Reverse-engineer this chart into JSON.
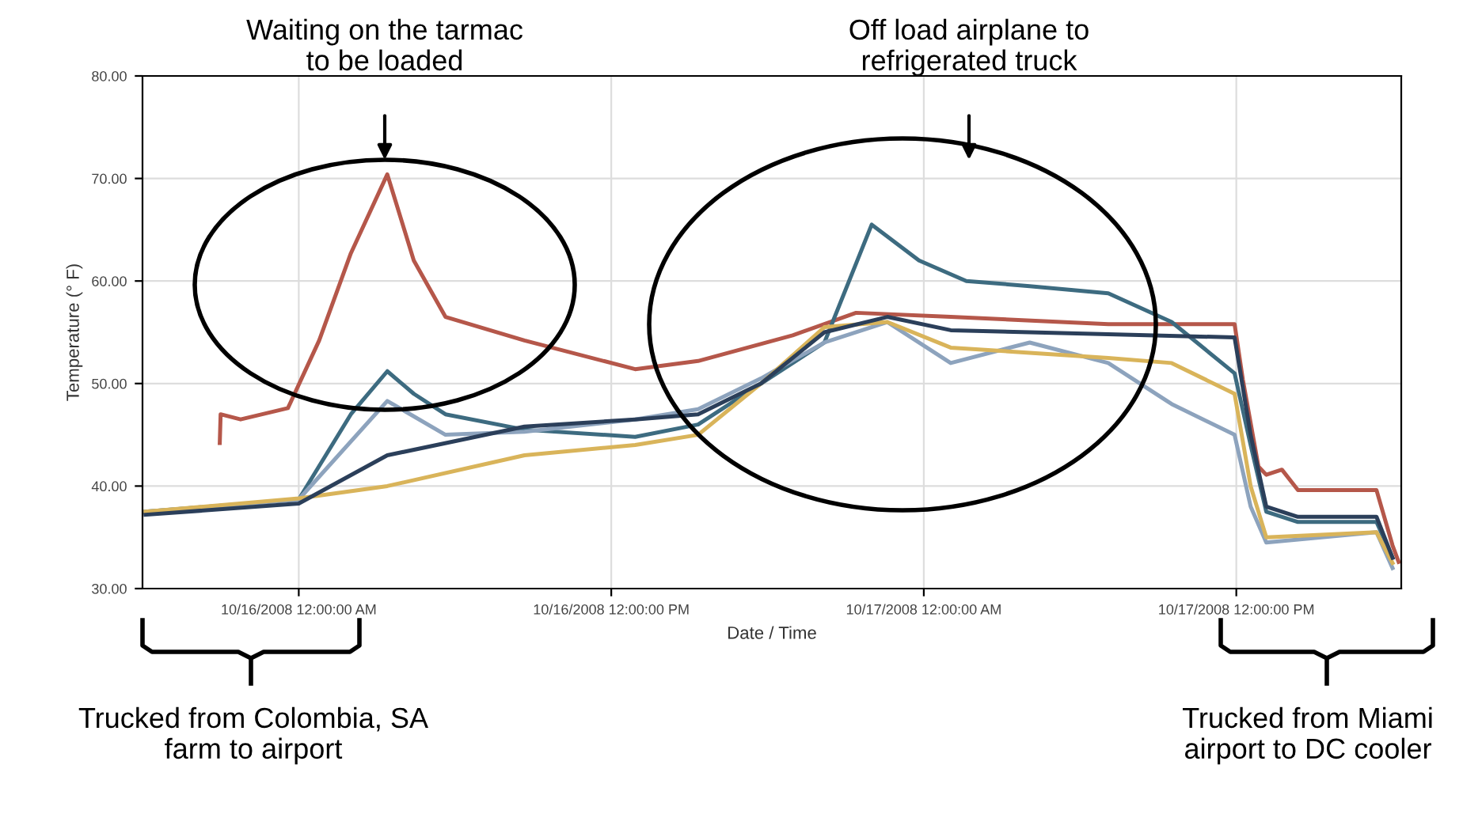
{
  "chart_data": {
    "type": "line",
    "xlabel": "Date / Time",
    "ylabel": "Temperature (° F)",
    "xlim": [
      "2008-10-15T18:00",
      "2008-10-17T18:20"
    ],
    "xticks": [
      {
        "value": "2008-10-16T00:00",
        "label": "10/16/2008 12:00:00 AM"
      },
      {
        "value": "2008-10-16T12:00",
        "label": "10/16/2008 12:00:00 PM"
      },
      {
        "value": "2008-10-17T00:00",
        "label": "10/17/2008 12:00:00 AM"
      },
      {
        "value": "2008-10-17T12:00",
        "label": "10/17/2008 12:00:00 PM"
      }
    ],
    "ylim": [
      30,
      80
    ],
    "yticks": [
      {
        "value": 30,
        "label": "30.00"
      },
      {
        "value": 40,
        "label": "40.00"
      },
      {
        "value": 50,
        "label": "50.00"
      },
      {
        "value": 60,
        "label": "60.00"
      },
      {
        "value": 70,
        "label": "70.00"
      },
      {
        "value": 80,
        "label": "80.00"
      }
    ],
    "grid": true,
    "legend": false,
    "marker": "none",
    "line_style": "solid",
    "series": [
      {
        "color": "#b5574a",
        "x": [
          "2008-10-15T20:58",
          "2008-10-15T21:00",
          "2008-10-15T21:46",
          "2008-10-15T23:35",
          "2008-10-16T00:47",
          "2008-10-16T02:00",
          "2008-10-16T03:24",
          "2008-10-16T04:25",
          "2008-10-16T05:38",
          "2008-10-16T08:40",
          "2008-10-16T12:55",
          "2008-10-16T15:20",
          "2008-10-16T18:58",
          "2008-10-16T21:24",
          "2008-10-17T01:02",
          "2008-10-17T07:05",
          "2008-10-17T11:56",
          "2008-10-17T12:15",
          "2008-10-17T12:51",
          "2008-10-17T13:09",
          "2008-10-17T13:45",
          "2008-10-17T14:22",
          "2008-10-17T17:23",
          "2008-10-17T18:00",
          "2008-10-17T18:14"
        ],
        "values": [
          44.2,
          47,
          46.5,
          47.6,
          54.2,
          62.7,
          70.4,
          62,
          56.5,
          54.2,
          51.4,
          52.2,
          54.7,
          56.9,
          56.5,
          55.8,
          55.8,
          50.4,
          41.9,
          41.1,
          41.6,
          39.6,
          39.6,
          34.2,
          32.6
        ]
      },
      {
        "color": "#3d6b80",
        "x": [
          "2008-10-15T18:07",
          "2008-10-16T00:00",
          "2008-10-16T02:00",
          "2008-10-16T03:24",
          "2008-10-16T04:25",
          "2008-10-16T05:38",
          "2008-10-16T08:40",
          "2008-10-16T12:55",
          "2008-10-16T15:20",
          "2008-10-16T17:45",
          "2008-10-16T20:11",
          "2008-10-16T22:00",
          "2008-10-16T23:49",
          "2008-10-17T01:38",
          "2008-10-17T04:04",
          "2008-10-17T07:05",
          "2008-10-17T09:31",
          "2008-10-17T11:56",
          "2008-10-17T12:33",
          "2008-10-17T13:09",
          "2008-10-17T14:22",
          "2008-10-17T17:23",
          "2008-10-17T18:00"
        ],
        "values": [
          37.5,
          38.7,
          47,
          51.2,
          49,
          47,
          45.5,
          44.8,
          46,
          50,
          54,
          65.5,
          62,
          60,
          59.5,
          58.8,
          56,
          51,
          44,
          37.5,
          36.5,
          36.5,
          33
        ]
      },
      {
        "color": "#8da3bd",
        "x": [
          "2008-10-15T18:07",
          "2008-10-16T00:00",
          "2008-10-16T03:24",
          "2008-10-16T05:38",
          "2008-10-16T08:40",
          "2008-10-16T12:55",
          "2008-10-16T15:20",
          "2008-10-16T17:45",
          "2008-10-16T20:11",
          "2008-10-16T22:36",
          "2008-10-17T01:02",
          "2008-10-17T04:04",
          "2008-10-17T07:05",
          "2008-10-17T09:31",
          "2008-10-17T11:56",
          "2008-10-17T12:33",
          "2008-10-17T13:09",
          "2008-10-17T17:23",
          "2008-10-17T18:00"
        ],
        "values": [
          37.5,
          38.7,
          48.3,
          45,
          45.3,
          46.5,
          47.5,
          50.5,
          54,
          56,
          52,
          54,
          52,
          48,
          45,
          38,
          34.5,
          35.5,
          32
        ]
      },
      {
        "color": "#d9b45a",
        "x": [
          "2008-10-15T18:07",
          "2008-10-16T00:00",
          "2008-10-16T03:24",
          "2008-10-16T08:40",
          "2008-10-16T12:55",
          "2008-10-16T15:20",
          "2008-10-16T17:45",
          "2008-10-16T20:11",
          "2008-10-16T22:36",
          "2008-10-17T01:02",
          "2008-10-17T04:04",
          "2008-10-17T07:05",
          "2008-10-17T09:31",
          "2008-10-17T11:56",
          "2008-10-17T12:33",
          "2008-10-17T13:09",
          "2008-10-17T17:23",
          "2008-10-17T18:00"
        ],
        "values": [
          37.5,
          38.8,
          40,
          43,
          44,
          45,
          50,
          55.5,
          56,
          53.5,
          53,
          52.5,
          52,
          49,
          40,
          35,
          35.5,
          32.5
        ]
      },
      {
        "color": "#2b3f5a",
        "x": [
          "2008-10-15T18:07",
          "2008-10-16T00:00",
          "2008-10-16T03:24",
          "2008-10-16T08:40",
          "2008-10-16T12:55",
          "2008-10-16T15:20",
          "2008-10-16T17:45",
          "2008-10-16T20:11",
          "2008-10-16T22:36",
          "2008-10-17T01:02",
          "2008-10-17T04:04",
          "2008-10-17T07:05",
          "2008-10-17T11:56",
          "2008-10-17T12:33",
          "2008-10-17T13:09",
          "2008-10-17T14:22",
          "2008-10-17T17:23",
          "2008-10-17T18:00"
        ],
        "values": [
          37.2,
          38.3,
          43,
          45.8,
          46.5,
          47,
          50,
          55,
          56.5,
          55.2,
          55,
          54.8,
          54.5,
          45,
          38,
          37,
          37,
          33
        ]
      }
    ],
    "annotations": [
      "Waiting on the tarmac\nto be loaded",
      "Off load airplane to\nrefrigerated truck",
      "Trucked from Colombia, SA\nfarm to airport",
      "Trucked from Miami\nairport to DC cooler"
    ]
  }
}
